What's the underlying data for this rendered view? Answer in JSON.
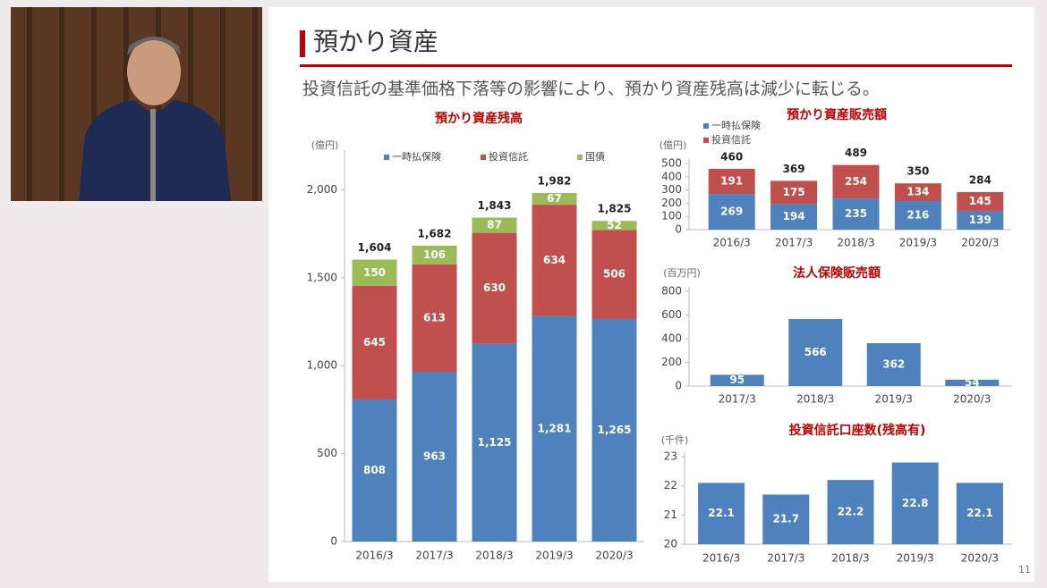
{
  "slide": {
    "title": "預かり資産",
    "subtitle": "投資信託の基準価格下落等の影響により、預かり資産残高は減少に転じる。",
    "page_number": "11"
  },
  "chart_data": [
    {
      "type": "bar",
      "stacked": true,
      "title": "預かり資産残高",
      "y_unit": "(億円)",
      "legend": "top",
      "grid": false,
      "categories": [
        "2016/3",
        "2017/3",
        "2018/3",
        "2019/3",
        "2020/3"
      ],
      "series": [
        {
          "name": "一時払保険",
          "color": "#4f81bd",
          "values": [
            808,
            963,
            1125,
            1281,
            1265
          ],
          "value_labels": [
            "808",
            "963",
            "1,125",
            "1,281",
            "1,265"
          ]
        },
        {
          "name": "投資信託",
          "color": "#c0504d",
          "values": [
            645,
            613,
            630,
            634,
            506
          ]
        },
        {
          "name": "国債",
          "color": "#9bbb59",
          "values": [
            150,
            106,
            87,
            67,
            52
          ]
        }
      ],
      "totals": [
        1604,
        1682,
        1843,
        1982,
        1825
      ],
      "total_labels": [
        "1,604",
        "1,682",
        "1,843",
        "1,982",
        "1,825"
      ],
      "ylim": [
        0,
        2200
      ],
      "yticks": [
        0,
        500,
        {
          "value": 1000,
          "label": "1,000"
        },
        {
          "value": 1500,
          "label": "1,500"
        },
        {
          "value": 2000,
          "label": "2,000"
        }
      ]
    },
    {
      "type": "bar",
      "stacked": true,
      "title": "預かり資産販売額",
      "y_unit": "(億円)",
      "legend": "top-left",
      "grid": false,
      "categories": [
        "2016/3",
        "2017/3",
        "2018/3",
        "2019/3",
        "2020/3"
      ],
      "series": [
        {
          "name": "一時払保険",
          "color": "#4f81bd",
          "values": [
            269,
            194,
            235,
            216,
            139
          ]
        },
        {
          "name": "投資信託",
          "color": "#c0504d",
          "values": [
            191,
            175,
            254,
            134,
            145
          ]
        }
      ],
      "totals": [
        460,
        369,
        489,
        350,
        284
      ],
      "ylim": [
        0,
        500
      ],
      "yticks": [
        0,
        100,
        200,
        300,
        400,
        500
      ]
    },
    {
      "type": "bar",
      "title": "法人保険販売額",
      "y_unit": "(百万円)",
      "grid": false,
      "color": "#4f81bd",
      "categories": [
        "2017/3",
        "2018/3",
        "2019/3",
        "2020/3"
      ],
      "values": [
        95,
        566,
        362,
        54
      ],
      "ylim": [
        0,
        800
      ],
      "yticks": [
        0,
        200,
        400,
        600,
        800
      ]
    },
    {
      "type": "bar",
      "title": "投資信託口座数(残高有)",
      "y_unit": "(千件)",
      "grid": false,
      "color": "#4f81bd",
      "categories": [
        "2016/3",
        "2017/3",
        "2018/3",
        "2019/3",
        "2020/3"
      ],
      "values": [
        22.1,
        21.7,
        22.2,
        22.8,
        22.1
      ],
      "ylim": [
        20,
        23
      ],
      "yticks": [
        20,
        21,
        22,
        23
      ]
    }
  ]
}
